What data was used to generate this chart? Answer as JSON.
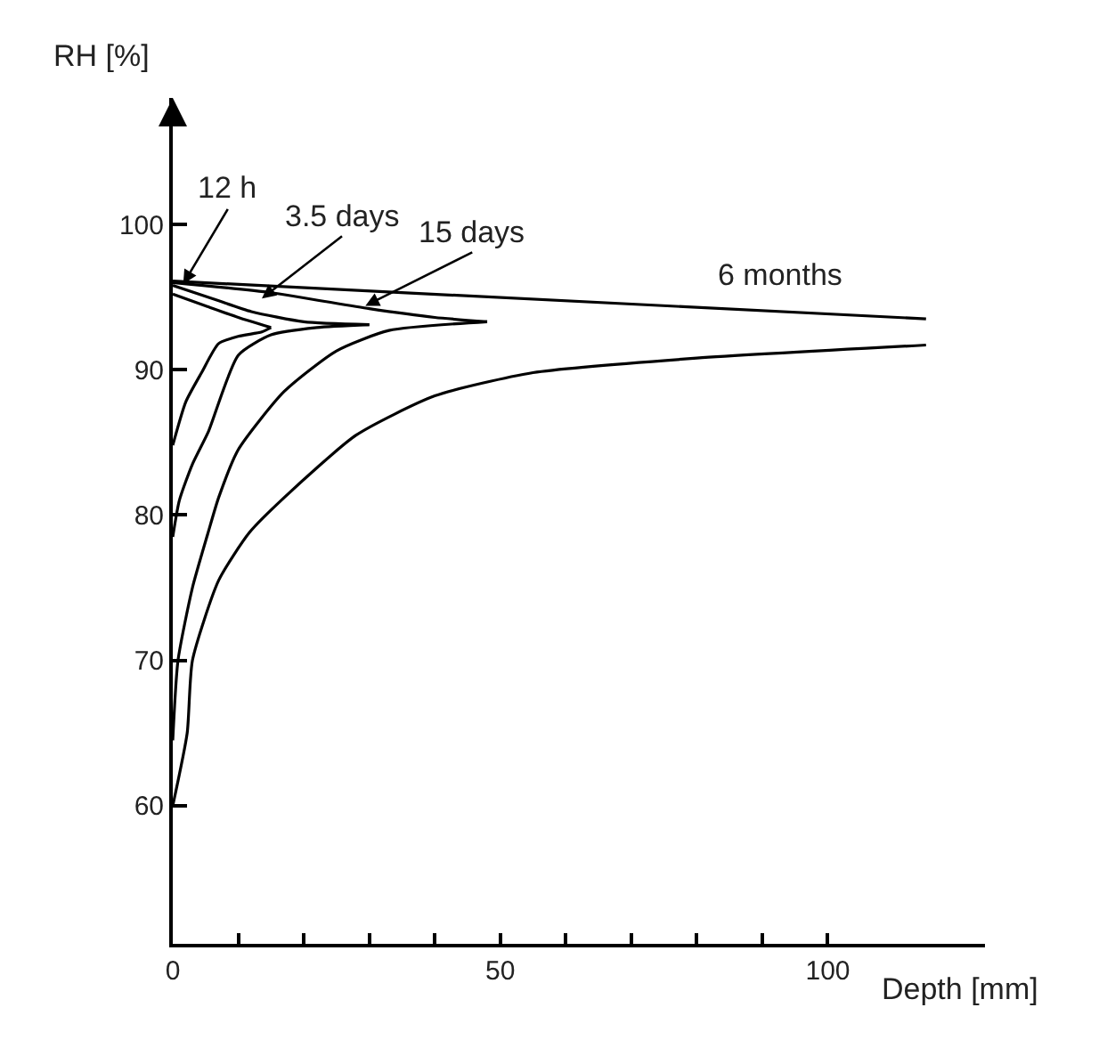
{
  "chart_data": {
    "type": "line",
    "xlabel": "Depth [mm]",
    "ylabel": "RH [%]",
    "xlim": [
      0,
      124
    ],
    "ylim": [
      50.5,
      108.7
    ],
    "xticks": [
      0,
      {
        "value": 10,
        "label": null
      },
      {
        "value": 20,
        "label": null
      },
      {
        "value": 30,
        "label": null
      },
      {
        "value": 40,
        "label": null
      },
      50,
      {
        "value": 60,
        "label": null
      },
      {
        "value": 70,
        "label": null
      },
      {
        "value": 80,
        "label": null
      },
      {
        "value": 90,
        "label": null
      },
      100
    ],
    "yticks": [
      60,
      70,
      80,
      90,
      100
    ],
    "marker": "none",
    "line_style": "solid",
    "series": [
      {
        "color": "#000000",
        "x": [
          0,
          5,
          10,
          15
        ],
        "values": [
          95.2,
          94.4,
          93.6,
          92.9
        ]
      },
      {
        "color": "#000000",
        "x": [
          0,
          2,
          4.4,
          7,
          10,
          13.6,
          15
        ],
        "values": [
          84.8,
          87.8,
          89.8,
          91.8,
          92.3,
          92.6,
          92.9
        ]
      },
      {
        "color": "#000000",
        "x": [
          0,
          6,
          12,
          20,
          30
        ],
        "values": [
          95.8,
          94.9,
          94,
          93.3,
          93.1
        ]
      },
      {
        "color": "#000000",
        "x": [
          0,
          1,
          3,
          5.4,
          10,
          15,
          22,
          30
        ],
        "values": [
          78.5,
          81,
          83.5,
          85.7,
          91,
          92.4,
          92.9,
          93.1
        ]
      },
      {
        "color": "#000000",
        "x": [
          0,
          15,
          30,
          40,
          48
        ],
        "values": [
          96,
          95.3,
          94.2,
          93.6,
          93.3
        ]
      },
      {
        "color": "#000000",
        "x": [
          0,
          0.8,
          3,
          5.4,
          7,
          10,
          17,
          25,
          33,
          48
        ],
        "values": [
          64.5,
          70,
          75,
          78.8,
          81.2,
          84.5,
          88.5,
          91.3,
          92.7,
          93.3
        ]
      },
      {
        "color": "#000000",
        "x": [
          0,
          115
        ],
        "values": [
          96.1,
          93.5
        ]
      },
      {
        "color": "#000000",
        "x": [
          0,
          2.2,
          3,
          7,
          11.7,
          17,
          28,
          40,
          55,
          80,
          115
        ],
        "values": [
          60,
          65,
          70,
          75.5,
          78.8,
          81.2,
          85.5,
          88.2,
          89.8,
          90.8,
          91.7
        ]
      }
    ],
    "annotations": [
      {
        "text": "12 h",
        "x": 1.6,
        "y": 95.9
      },
      {
        "text": "3.5 days",
        "x": 13.6,
        "y": 94.9
      },
      {
        "text": "15 days",
        "x": 29.4,
        "y": 94.4
      },
      "6 months"
    ]
  }
}
